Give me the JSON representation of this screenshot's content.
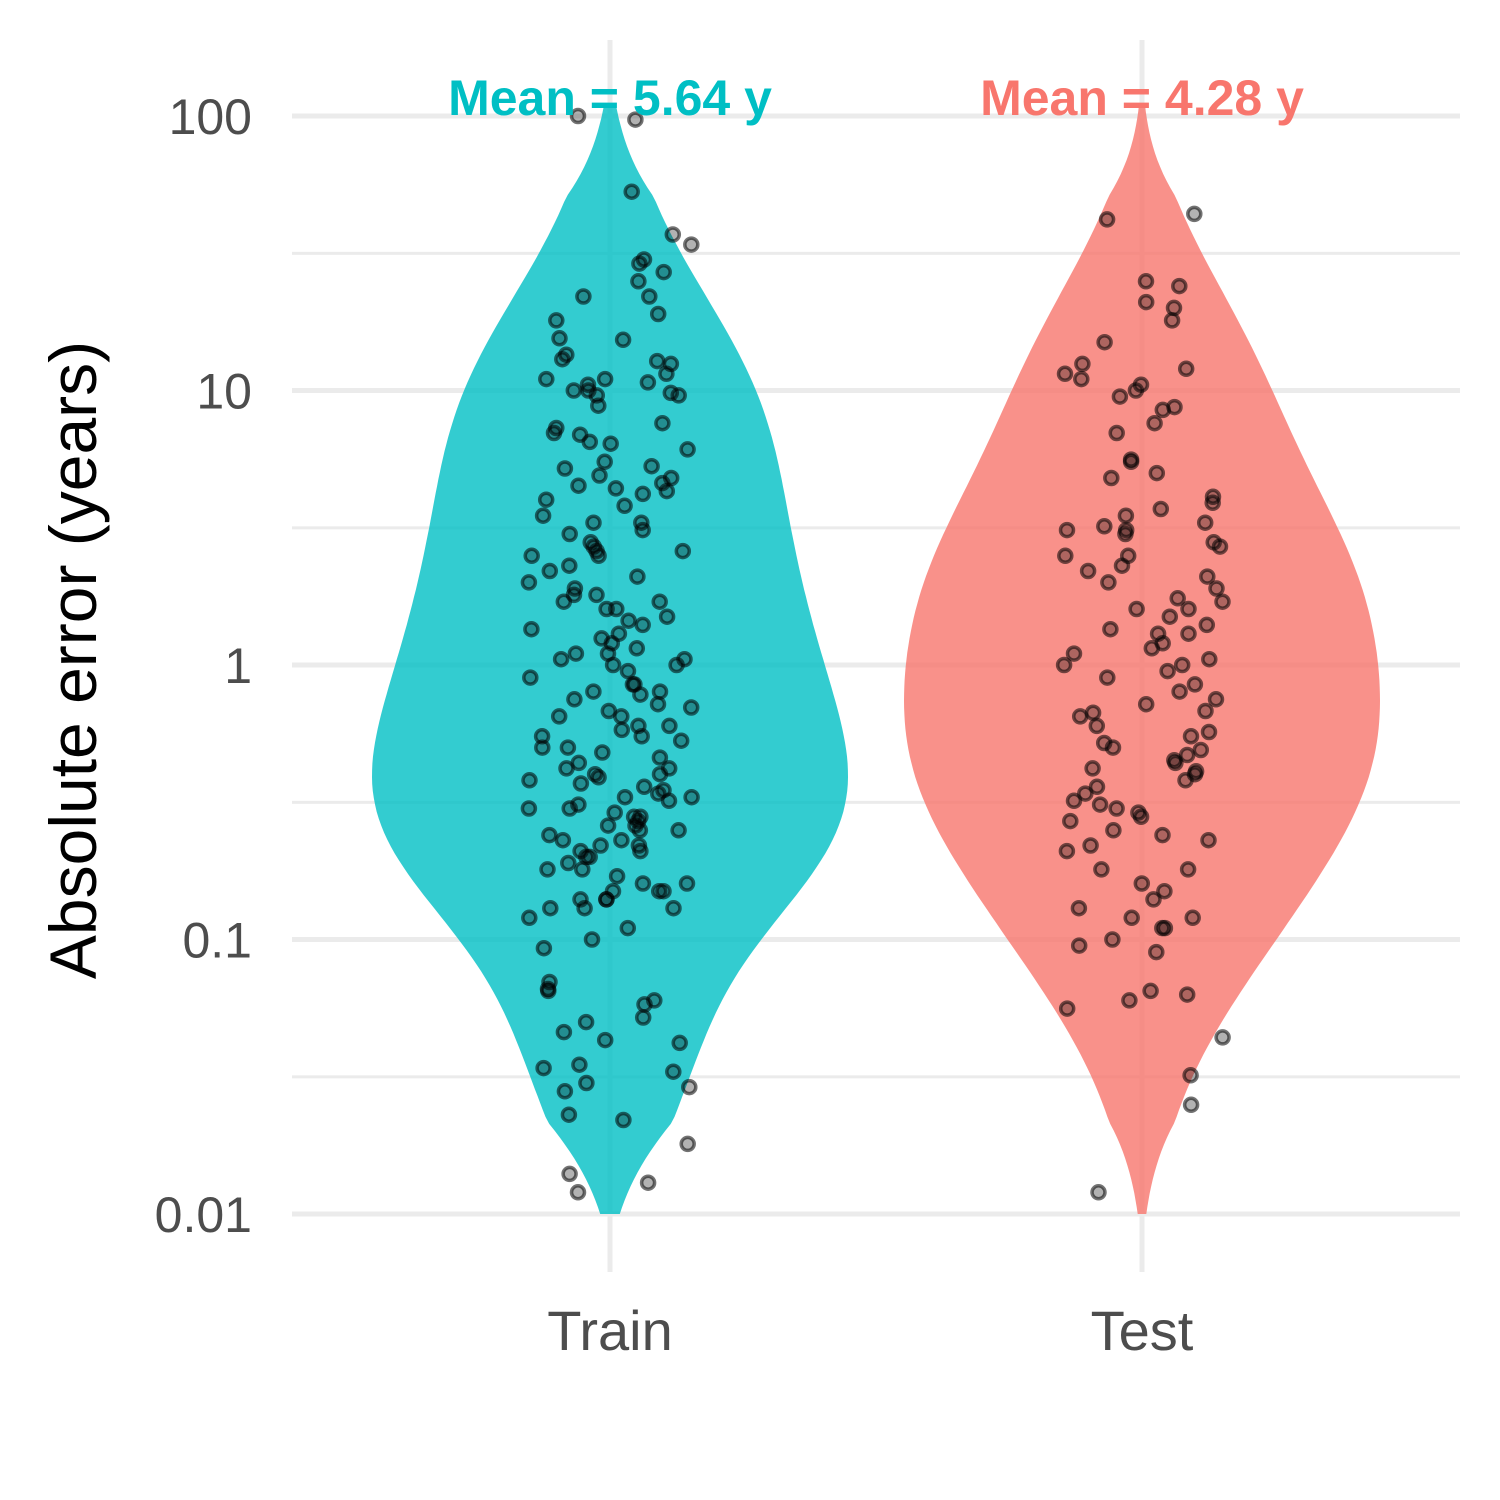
{
  "chart_data": {
    "type": "violin",
    "title": "",
    "xlabel": "",
    "ylabel": "Absolute error (years)",
    "yscale": "log10",
    "ylim": [
      0.0075,
      160
    ],
    "yticks": [
      {
        "value": 0.01,
        "label": "0.01"
      },
      {
        "value": 0.1,
        "label": "0.1"
      },
      {
        "value": 1,
        "label": "1"
      },
      {
        "value": 10,
        "label": "10"
      },
      {
        "value": 100,
        "label": "100"
      }
    ],
    "minor_gridlines": [
      0.0316,
      0.316,
      3.16,
      31.6
    ],
    "grid": true,
    "legend": "none",
    "groups": [
      {
        "name": "Train",
        "color": "#00BFC4",
        "mean_label": "Mean = 5.64 y",
        "violin_range": [
          0.01,
          110
        ],
        "points": [
          97,
          100,
          53,
          34,
          29,
          25,
          18,
          37,
          30,
          27,
          22,
          22,
          19,
          15.5,
          15.3,
          13.5,
          13,
          12.8,
          12.5,
          11.5,
          11,
          11,
          10.7,
          10.5,
          10,
          10,
          9.6,
          9.8,
          9.6,
          8.8,
          7.6,
          7.3,
          7,
          6.9,
          6.5,
          6.4,
          6.1,
          5.5,
          5.3,
          5.2,
          4.9,
          4.8,
          4.6,
          4.5,
          4.4,
          4.3,
          4.2,
          4,
          3.8,
          3.5,
          3.3,
          3.3,
          3.1,
          3,
          2.8,
          2.7,
          2.6,
          2.6,
          2.5,
          2.5,
          2.3,
          2.2,
          2.1,
          2,
          1.9,
          1.8,
          1.8,
          1.7,
          1.7,
          1.6,
          1.6,
          1.5,
          1.45,
          1.4,
          1.35,
          1.3,
          1.25,
          1.2,
          1.15,
          1.1,
          1.1,
          1.05,
          1.05,
          1,
          1,
          0.95,
          0.9,
          0.85,
          0.85,
          0.8,
          0.8,
          0.78,
          0.75,
          0.72,
          0.7,
          0.68,
          0.65,
          0.65,
          0.6,
          0.6,
          0.58,
          0.55,
          0.55,
          0.53,
          0.5,
          0.5,
          0.48,
          0.46,
          0.44,
          0.42,
          0.42,
          0.4,
          0.4,
          0.39,
          0.38,
          0.37,
          0.36,
          0.35,
          0.34,
          0.33,
          0.33,
          0.32,
          0.31,
          0.3,
          0.3,
          0.29,
          0.28,
          0.28,
          0.27,
          0.26,
          0.26,
          0.25,
          0.25,
          0.24,
          0.23,
          0.23,
          0.22,
          0.22,
          0.21,
          0.21,
          0.2,
          0.2,
          0.19,
          0.18,
          0.18,
          0.17,
          0.16,
          0.16,
          0.15,
          0.15,
          0.15,
          0.14,
          0.14,
          0.14,
          0.13,
          0.13,
          0.13,
          0.12,
          0.11,
          0.1,
          0.093,
          0.07,
          0.066,
          0.065,
          0.06,
          0.058,
          0.052,
          0.05,
          0.046,
          0.043,
          0.042,
          0.035,
          0.034,
          0.033,
          0.03,
          0.029,
          0.028,
          0.023,
          0.022,
          0.018,
          0.014,
          0.013,
          0.012
        ]
      },
      {
        "name": "Test",
        "color": "#F8766D",
        "mean_label": "Mean = 4.28 y",
        "violin_range": [
          0.01,
          110
        ],
        "points": [
          44,
          42,
          25,
          24,
          21,
          20,
          18,
          15,
          12.5,
          12,
          11.5,
          11,
          10.5,
          10,
          9.5,
          8.7,
          8.5,
          7.6,
          7,
          5.6,
          5.5,
          5,
          4.8,
          4.1,
          3.9,
          3.7,
          3.5,
          3.3,
          3.2,
          3.1,
          3.1,
          3,
          2.8,
          2.7,
          2.5,
          2.5,
          2.3,
          2.2,
          2.1,
          2,
          1.9,
          1.75,
          1.7,
          1.6,
          1.6,
          1.5,
          1.4,
          1.35,
          1.3,
          1.3,
          1.2,
          1.15,
          1.1,
          1.05,
          1,
          1,
          0.95,
          0.9,
          0.85,
          0.8,
          0.75,
          0.72,
          0.68,
          0.67,
          0.65,
          0.6,
          0.57,
          0.55,
          0.52,
          0.5,
          0.49,
          0.47,
          0.45,
          0.44,
          0.42,
          0.41,
          0.4,
          0.38,
          0.36,
          0.34,
          0.32,
          0.31,
          0.3,
          0.29,
          0.28,
          0.27,
          0.25,
          0.24,
          0.23,
          0.22,
          0.21,
          0.18,
          0.18,
          0.16,
          0.15,
          0.14,
          0.13,
          0.12,
          0.12,
          0.11,
          0.11,
          0.1,
          0.095,
          0.09,
          0.065,
          0.063,
          0.06,
          0.056,
          0.044,
          0.032,
          0.025,
          0.012
        ]
      }
    ]
  }
}
